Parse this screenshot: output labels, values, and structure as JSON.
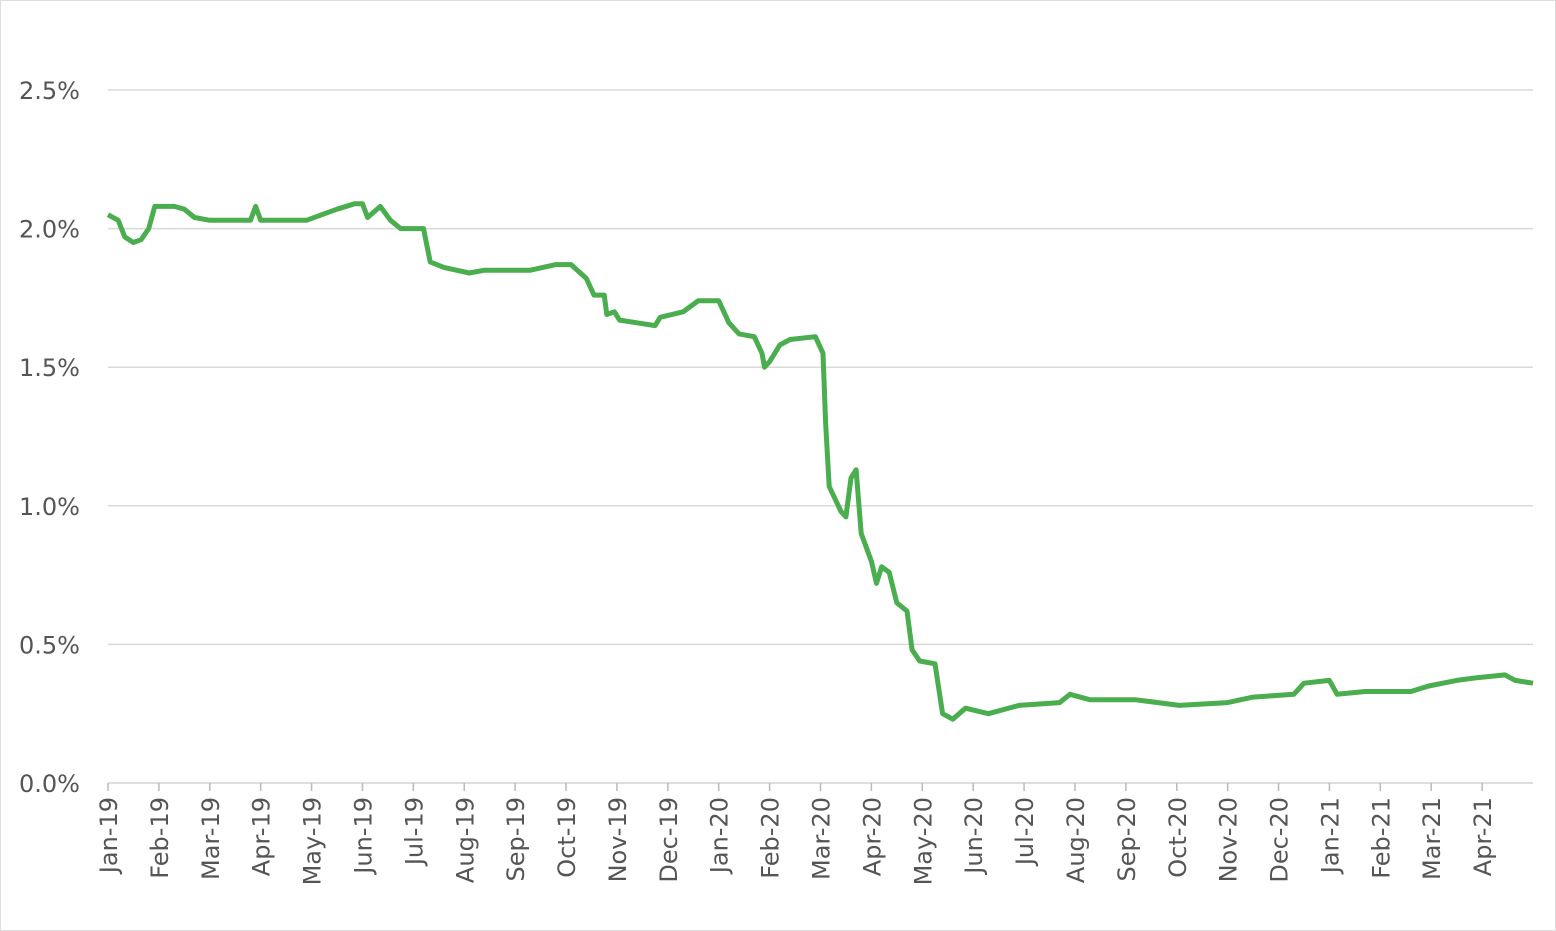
{
  "chart_data": {
    "type": "line",
    "x": [
      0,
      0.2,
      0.33,
      0.5,
      0.65,
      0.8,
      0.92,
      1.3,
      1.5,
      1.7,
      2.0,
      2.8,
      2.9,
      3.0,
      3.9,
      4.2,
      4.5,
      4.85,
      5.0,
      5.1,
      5.35,
      5.55,
      5.75,
      6.2,
      6.33,
      6.6,
      7.1,
      7.4,
      8.3,
      8.8,
      9.1,
      9.4,
      9.55,
      9.75,
      9.8,
      9.95,
      10.05,
      10.75,
      10.85,
      11.3,
      11.6,
      11.9,
      12.0,
      12.2,
      12.4,
      12.7,
      12.85,
      12.9,
      13.0,
      13.2,
      13.4,
      13.9,
      14.05,
      14.1,
      14.17,
      14.4,
      14.5,
      14.6,
      14.7,
      14.8,
      15.0,
      15.1,
      15.2,
      15.35,
      15.5,
      15.7,
      15.8,
      15.95,
      16.25,
      16.4,
      16.6,
      16.85,
      17.3,
      17.9,
      18.7,
      18.9,
      19.3,
      20.2,
      21.05,
      22.0,
      22.5,
      23.3,
      23.5,
      24.0,
      24.15,
      24.7,
      25.6,
      25.95,
      26.5,
      26.9,
      27.45,
      27.65,
      28.0
    ],
    "series": [
      {
        "color": "#4aae4f",
        "values": [
          2.05,
          2.03,
          1.97,
          1.95,
          1.96,
          2.0,
          2.08,
          2.08,
          2.07,
          2.04,
          2.03,
          2.03,
          2.08,
          2.03,
          2.03,
          2.05,
          2.07,
          2.09,
          2.09,
          2.04,
          2.08,
          2.03,
          2.0,
          2.0,
          1.88,
          1.86,
          1.84,
          1.85,
          1.85,
          1.87,
          1.87,
          1.82,
          1.76,
          1.76,
          1.69,
          1.7,
          1.67,
          1.65,
          1.68,
          1.7,
          1.74,
          1.74,
          1.74,
          1.66,
          1.62,
          1.61,
          1.55,
          1.5,
          1.52,
          1.58,
          1.6,
          1.61,
          1.55,
          1.3,
          1.07,
          0.98,
          0.96,
          1.1,
          1.13,
          0.9,
          0.8,
          0.72,
          0.78,
          0.76,
          0.65,
          0.62,
          0.48,
          0.44,
          0.43,
          0.25,
          0.23,
          0.27,
          0.25,
          0.28,
          0.29,
          0.32,
          0.3,
          0.3,
          0.28,
          0.29,
          0.31,
          0.32,
          0.36,
          0.37,
          0.32,
          0.33,
          0.33,
          0.35,
          0.37,
          0.38,
          0.39,
          0.37,
          0.36
        ]
      }
    ],
    "xlim": [
      0,
      28
    ],
    "xticks": [
      {
        "value": 0,
        "label": "Jan-19"
      },
      {
        "value": 1,
        "label": "Feb-19"
      },
      {
        "value": 2,
        "label": "Mar-19"
      },
      {
        "value": 3,
        "label": "Apr-19"
      },
      {
        "value": 4,
        "label": "May-19"
      },
      {
        "value": 5,
        "label": "Jun-19"
      },
      {
        "value": 6,
        "label": "Jul-19"
      },
      {
        "value": 7,
        "label": "Aug-19"
      },
      {
        "value": 8,
        "label": "Sep-19"
      },
      {
        "value": 9,
        "label": "Oct-19"
      },
      {
        "value": 10,
        "label": "Nov-19"
      },
      {
        "value": 11,
        "label": "Dec-19"
      },
      {
        "value": 12,
        "label": "Jan-20"
      },
      {
        "value": 13,
        "label": "Feb-20"
      },
      {
        "value": 14,
        "label": "Mar-20"
      },
      {
        "value": 15,
        "label": "Apr-20"
      },
      {
        "value": 16,
        "label": "May-20"
      },
      {
        "value": 17,
        "label": "Jun-20"
      },
      {
        "value": 18,
        "label": "Jul-20"
      },
      {
        "value": 19,
        "label": "Aug-20"
      },
      {
        "value": 20,
        "label": "Sep-20"
      },
      {
        "value": 21,
        "label": "Oct-20"
      },
      {
        "value": 22,
        "label": "Nov-20"
      },
      {
        "value": 23,
        "label": "Dec-20"
      },
      {
        "value": 24,
        "label": "Jan-21"
      },
      {
        "value": 25,
        "label": "Feb-21"
      },
      {
        "value": 26,
        "label": "Mar-21"
      },
      {
        "value": 27,
        "label": "Apr-21"
      }
    ],
    "ylim": [
      0,
      2.5
    ],
    "yticks": [
      {
        "value": 0,
        "label": "0.0%"
      },
      {
        "value": 0.5,
        "label": "0.5%"
      },
      {
        "value": 1,
        "label": "1.0%"
      },
      {
        "value": 1.5,
        "label": "1.5%"
      },
      {
        "value": 2,
        "label": "2.0%"
      },
      {
        "value": 2.5,
        "label": "2.5%"
      }
    ],
    "grid": true
  }
}
